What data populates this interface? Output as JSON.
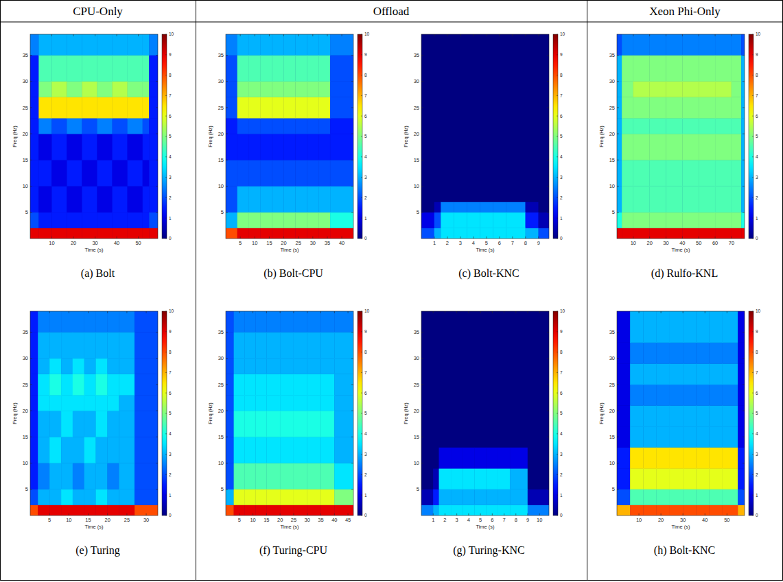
{
  "header": [
    "CPU-Only",
    "Offload",
    "Xeon Phi-Only"
  ],
  "chart_data": [
    {
      "type": "heatmap",
      "caption": "(a) Bolt",
      "x_label": "Time (s)",
      "y_label": "Freq (Hz)",
      "xlim": [
        0,
        59
      ],
      "ylim": [
        0,
        39
      ],
      "xticks": [
        10,
        20,
        30,
        40,
        50
      ],
      "yticks": [
        5,
        10,
        15,
        20,
        25,
        30,
        35
      ],
      "x_edges": [
        0,
        4,
        10,
        17,
        24,
        31,
        38,
        45,
        52,
        55,
        59
      ],
      "y_edges": [
        0,
        2,
        5,
        10,
        15,
        20,
        23,
        27,
        30,
        35,
        39
      ],
      "cells": [
        [
          9,
          9,
          9,
          9,
          9,
          9,
          9,
          9,
          9,
          9
        ],
        [
          2,
          1.5,
          1.5,
          1.5,
          1.5,
          1.5,
          1.5,
          1.5,
          1.5,
          2
        ],
        [
          1.5,
          1,
          1.5,
          1,
          1.5,
          1,
          1.5,
          1,
          1.5,
          1.5
        ],
        [
          1.5,
          1.5,
          1,
          1.5,
          1,
          1.5,
          1,
          1.5,
          1,
          1.5
        ],
        [
          1.5,
          1,
          1.5,
          1,
          1.5,
          1,
          1.5,
          1,
          1.5,
          1.5
        ],
        [
          1.5,
          2.5,
          2,
          2.5,
          2,
          2.5,
          2,
          2.5,
          2,
          1.5
        ],
        [
          1.5,
          6.5,
          6.5,
          6.5,
          6.5,
          6.5,
          6.5,
          6.5,
          6.5,
          1.5
        ],
        [
          1.5,
          5,
          5.5,
          5,
          5.5,
          5,
          5.5,
          5,
          5,
          1.5
        ],
        [
          1.5,
          4.5,
          4.5,
          4.5,
          4.5,
          4.5,
          4.5,
          4.5,
          4.5,
          1.5
        ],
        [
          2.5,
          3,
          3,
          3,
          3,
          3,
          3,
          3,
          3,
          2.5
        ]
      ],
      "color_range": [
        0,
        10
      ],
      "color_ticks": [
        0,
        1,
        2,
        3,
        4,
        5,
        6,
        7,
        8,
        9,
        10
      ]
    },
    {
      "type": "heatmap",
      "caption": "(b) Bolt-CPU",
      "x_label": "Time (s)",
      "y_label": "Freq (Hz)",
      "xlim": [
        0,
        44
      ],
      "ylim": [
        0,
        39
      ],
      "xticks": [
        5,
        10,
        15,
        20,
        25,
        30,
        35,
        40
      ],
      "yticks": [
        5,
        10,
        15,
        20,
        25,
        30,
        35
      ],
      "x_edges": [
        0,
        4,
        8,
        12,
        16,
        20,
        24,
        28,
        32,
        36,
        44
      ],
      "y_edges": [
        0,
        2,
        5,
        10,
        15,
        20,
        23,
        27,
        30,
        35,
        39
      ],
      "cells": [
        [
          8,
          9,
          9,
          9,
          9,
          9,
          9,
          9,
          9,
          9
        ],
        [
          3,
          5,
          5,
          5,
          5,
          5,
          5,
          5,
          5,
          4
        ],
        [
          2,
          3,
          3,
          3,
          3,
          3,
          3,
          3,
          3,
          3
        ],
        [
          2,
          2,
          2,
          2,
          2,
          2,
          2,
          2,
          2,
          2
        ],
        [
          1.5,
          1.5,
          1.5,
          1.5,
          1.5,
          1.5,
          1.5,
          1.5,
          1.5,
          1.5
        ],
        [
          1.5,
          2,
          2,
          2,
          2,
          2,
          2,
          2,
          2,
          1.5
        ],
        [
          2,
          6,
          6,
          6,
          6,
          6,
          6,
          6,
          6,
          2
        ],
        [
          2,
          5,
          5,
          5,
          5,
          5,
          5,
          5,
          5,
          2
        ],
        [
          2,
          4.5,
          4.5,
          4.5,
          4.5,
          4.5,
          4.5,
          4.5,
          4.5,
          2
        ],
        [
          2.5,
          3,
          3,
          3,
          3,
          3,
          3,
          3,
          3,
          2.5
        ]
      ],
      "color_range": [
        0,
        10
      ],
      "color_ticks": [
        0,
        1,
        2,
        3,
        4,
        5,
        6,
        7,
        8,
        9,
        10
      ]
    },
    {
      "type": "heatmap",
      "caption": "(c) Bolt-KNC",
      "x_label": "Time (s)",
      "y_label": "Freq (Hz)",
      "xlim": [
        0,
        9.8
      ],
      "ylim": [
        0,
        39
      ],
      "xticks": [
        1,
        2,
        3,
        4,
        5,
        6,
        7,
        8,
        9
      ],
      "yticks": [
        5,
        10,
        15,
        20,
        25,
        30,
        35
      ],
      "x_edges": [
        0,
        1,
        1.5,
        2.5,
        3.5,
        4.5,
        5.5,
        6.5,
        8,
        9,
        9.8
      ],
      "y_edges": [
        0,
        2,
        5,
        7,
        39
      ],
      "cells": [
        [
          2,
          3,
          3.5,
          3.5,
          3.5,
          3.5,
          3.5,
          3.5,
          3,
          2
        ],
        [
          1,
          2,
          3.5,
          3.5,
          3.5,
          3.5,
          3.5,
          3.5,
          1.5,
          0.5
        ],
        [
          0,
          0.5,
          2.5,
          2.5,
          2.5,
          2.5,
          2.5,
          2.5,
          0.5,
          0
        ],
        [
          0,
          0,
          0,
          0,
          0,
          0,
          0,
          0,
          0,
          0
        ]
      ],
      "color_range": [
        0,
        10
      ],
      "color_ticks": [
        0,
        1,
        2,
        3,
        4,
        5,
        6,
        7,
        8,
        9,
        10
      ]
    },
    {
      "type": "heatmap",
      "caption": "(d) Rulfo-KNL",
      "x_label": "Time (s)",
      "y_label": "Freq (Hz)",
      "xlim": [
        0,
        78
      ],
      "ylim": [
        0,
        39
      ],
      "xticks": [
        10,
        20,
        30,
        40,
        50,
        60,
        70
      ],
      "yticks": [
        5,
        10,
        15,
        20,
        25,
        30,
        35
      ],
      "x_edges": [
        0,
        3,
        10,
        20,
        30,
        40,
        50,
        60,
        70,
        76,
        78
      ],
      "y_edges": [
        0,
        2,
        5,
        10,
        15,
        20,
        23,
        27,
        30,
        35,
        39
      ],
      "cells": [
        [
          9,
          9,
          9,
          9,
          9,
          9,
          9,
          9,
          9,
          9
        ],
        [
          4,
          5,
          5,
          5,
          5,
          5,
          5,
          5,
          5,
          4
        ],
        [
          3,
          4.5,
          4.5,
          4.5,
          4.5,
          4.5,
          4.5,
          4.5,
          4.5,
          3
        ],
        [
          3,
          4.5,
          4.5,
          4.5,
          4.5,
          4.5,
          4.5,
          4.5,
          4.5,
          3
        ],
        [
          3,
          5,
          5,
          5,
          5,
          5,
          5,
          5,
          5,
          3
        ],
        [
          3,
          4.5,
          4.5,
          4.5,
          4.5,
          4.5,
          4.5,
          4.5,
          4.5,
          3
        ],
        [
          3,
          5,
          5,
          5,
          5,
          5,
          5,
          5,
          5,
          3
        ],
        [
          3,
          5,
          5.5,
          5.5,
          5.5,
          5.5,
          5.5,
          5.5,
          5,
          3
        ],
        [
          3,
          5,
          5,
          5,
          5,
          5,
          5,
          5,
          5,
          3
        ],
        [
          2,
          2.5,
          2.5,
          2.5,
          2.5,
          2.5,
          2.5,
          2.5,
          2.5,
          2
        ]
      ],
      "color_range": [
        0,
        10
      ],
      "color_ticks": [
        0,
        1,
        2,
        3,
        4,
        5,
        6,
        7,
        8,
        9,
        10
      ]
    },
    {
      "type": "heatmap",
      "caption": "(e) Turing",
      "x_label": "Time (s)",
      "y_label": "Freq (Hz)",
      "xlim": [
        0,
        33
      ],
      "ylim": [
        0,
        39
      ],
      "xticks": [
        5,
        10,
        15,
        20,
        25,
        30
      ],
      "yticks": [
        5,
        10,
        15,
        20,
        25,
        30,
        35
      ],
      "x_edges": [
        0,
        2,
        5,
        8,
        11,
        14,
        17,
        20,
        23,
        27,
        33
      ],
      "y_edges": [
        0,
        2,
        5,
        10,
        15,
        20,
        23,
        27,
        30,
        35,
        39
      ],
      "cells": [
        [
          8,
          9,
          9,
          9,
          9,
          9,
          9,
          9,
          9,
          8
        ],
        [
          2,
          3,
          3,
          3.5,
          3,
          3,
          3.5,
          3,
          3,
          2
        ],
        [
          1.5,
          2.5,
          3,
          3,
          2.5,
          3,
          3,
          2.5,
          3,
          2
        ],
        [
          1.5,
          3,
          3.5,
          3,
          3,
          3.5,
          3,
          3,
          3,
          2
        ],
        [
          1.5,
          3,
          3,
          3.5,
          3,
          3,
          3.5,
          3,
          3,
          2
        ],
        [
          1.5,
          3.5,
          3.5,
          3.5,
          3.5,
          3.5,
          3.5,
          3.5,
          3,
          2
        ],
        [
          1.5,
          3.5,
          4,
          3.5,
          4,
          3.5,
          4,
          3.5,
          3.5,
          2
        ],
        [
          1.5,
          3,
          3.5,
          3,
          3.5,
          3,
          3.5,
          3,
          3,
          2
        ],
        [
          1.5,
          3,
          3,
          3,
          3,
          3,
          3,
          3,
          3,
          2
        ],
        [
          1.5,
          2.5,
          2.5,
          2.5,
          2.5,
          2.5,
          2.5,
          2.5,
          2.5,
          2
        ]
      ],
      "color_range": [
        0,
        10
      ],
      "color_ticks": [
        0,
        1,
        2,
        3,
        4,
        5,
        6,
        7,
        8,
        9,
        10
      ]
    },
    {
      "type": "heatmap",
      "caption": "(f) Turing-CPU",
      "x_label": "Time (s)",
      "y_label": "Freq (Hz)",
      "xlim": [
        0,
        47
      ],
      "ylim": [
        0,
        39
      ],
      "xticks": [
        5,
        10,
        15,
        20,
        25,
        30,
        35,
        40,
        45
      ],
      "yticks": [
        5,
        10,
        15,
        20,
        25,
        30,
        35
      ],
      "x_edges": [
        0,
        3,
        7,
        11,
        15,
        20,
        25,
        30,
        35,
        40,
        47
      ],
      "y_edges": [
        0,
        2,
        5,
        10,
        15,
        20,
        23,
        27,
        30,
        35,
        39
      ],
      "cells": [
        [
          8,
          9,
          9,
          9,
          9,
          9,
          9,
          9,
          9,
          9
        ],
        [
          3,
          6,
          6,
          6,
          6,
          6,
          6,
          6,
          6,
          5
        ],
        [
          2,
          4.5,
          4.5,
          4.5,
          4.5,
          4.5,
          4.5,
          4.5,
          4.5,
          3.5
        ],
        [
          2,
          3.5,
          3.5,
          3.5,
          3.5,
          3.5,
          3.5,
          3.5,
          3.5,
          3
        ],
        [
          2,
          4,
          4,
          4,
          4,
          4,
          4,
          4,
          4,
          3
        ],
        [
          2,
          3.5,
          3.5,
          3.5,
          3.5,
          3.5,
          3.5,
          3.5,
          3.5,
          3
        ],
        [
          2,
          3.5,
          3.5,
          3.5,
          3.5,
          3.5,
          3.5,
          3.5,
          3.5,
          3
        ],
        [
          2,
          3,
          3,
          3,
          3,
          3,
          3,
          3,
          3,
          3
        ],
        [
          2,
          3,
          3,
          3,
          3,
          3,
          3,
          3,
          3,
          3
        ],
        [
          2,
          2.5,
          2.5,
          2.5,
          2.5,
          2.5,
          2.5,
          2.5,
          2.5,
          2.5
        ]
      ],
      "color_range": [
        0,
        10
      ],
      "color_ticks": [
        0,
        1,
        2,
        3,
        4,
        5,
        6,
        7,
        8,
        9,
        10
      ]
    },
    {
      "type": "heatmap",
      "caption": "(g) Turing-KNC",
      "x_label": "Time (s)",
      "y_label": "Freq (Hz)",
      "xlim": [
        0,
        10.8
      ],
      "ylim": [
        0,
        39
      ],
      "xticks": [
        1,
        2,
        3,
        4,
        5,
        6,
        7,
        8,
        9,
        10
      ],
      "yticks": [
        5,
        10,
        15,
        20,
        25,
        30,
        35
      ],
      "x_edges": [
        0,
        1,
        1.5,
        2.5,
        3.5,
        4.5,
        5.5,
        6.5,
        7.5,
        9,
        10.8
      ],
      "y_edges": [
        0,
        2,
        5,
        9,
        13,
        39
      ],
      "cells": [
        [
          2.5,
          3,
          3.5,
          3.5,
          3.5,
          3.5,
          3.5,
          3.5,
          3.5,
          2.5
        ],
        [
          0.5,
          1.5,
          3,
          3,
          3,
          3,
          3,
          3,
          3,
          0.5
        ],
        [
          0,
          0.5,
          3.5,
          3.5,
          3.5,
          3.5,
          3.5,
          3.5,
          3,
          0
        ],
        [
          0,
          0,
          1,
          1,
          1,
          1,
          1,
          1,
          1,
          0
        ],
        [
          0,
          0,
          0,
          0,
          0,
          0,
          0,
          0,
          0,
          0
        ]
      ],
      "color_range": [
        0,
        10
      ],
      "color_ticks": [
        0,
        1,
        2,
        3,
        4,
        5,
        6,
        7,
        8,
        9,
        10
      ]
    },
    {
      "type": "heatmap",
      "caption": "(h) Bolt-KNC",
      "x_label": "Time (s)",
      "y_label": "Freq (Hz)",
      "xlim": [
        0,
        58
      ],
      "ylim": [
        0,
        39
      ],
      "xticks": [
        10,
        20,
        30,
        40,
        50
      ],
      "yticks": [
        5,
        10,
        15,
        20,
        25,
        30,
        35
      ],
      "x_edges": [
        0,
        6,
        12,
        18,
        24,
        30,
        36,
        42,
        48,
        55,
        58
      ],
      "y_edges": [
        0,
        2,
        5,
        9,
        13,
        17,
        21,
        25,
        29,
        33,
        39
      ],
      "cells": [
        [
          7,
          8,
          8,
          8,
          8,
          8,
          8,
          8,
          8,
          7
        ],
        [
          2,
          4.5,
          4.5,
          4.5,
          4.5,
          4.5,
          4.5,
          4.5,
          4.5,
          2
        ],
        [
          1.5,
          6,
          6,
          6,
          6,
          6,
          6,
          6,
          6,
          1.5
        ],
        [
          1.5,
          6.5,
          6.5,
          6.5,
          6.5,
          6.5,
          6.5,
          6.5,
          6.5,
          1.5
        ],
        [
          1,
          3,
          3,
          3,
          3,
          3,
          3,
          3,
          3,
          1
        ],
        [
          1,
          3,
          3,
          3,
          3,
          3,
          3,
          3,
          3,
          1
        ],
        [
          1,
          2.5,
          2.5,
          2.5,
          2.5,
          2.5,
          2.5,
          2.5,
          2.5,
          1
        ],
        [
          1,
          3,
          3,
          3,
          3,
          3,
          3,
          3,
          3,
          1
        ],
        [
          1,
          2.5,
          2.5,
          2.5,
          2.5,
          2.5,
          2.5,
          2.5,
          2.5,
          1
        ],
        [
          1,
          3,
          3,
          3,
          3,
          3,
          3,
          3,
          3,
          1
        ]
      ],
      "color_range": [
        0,
        10
      ],
      "color_ticks": [
        0,
        1,
        2,
        3,
        4,
        5,
        6,
        7,
        8,
        9,
        10
      ]
    }
  ]
}
